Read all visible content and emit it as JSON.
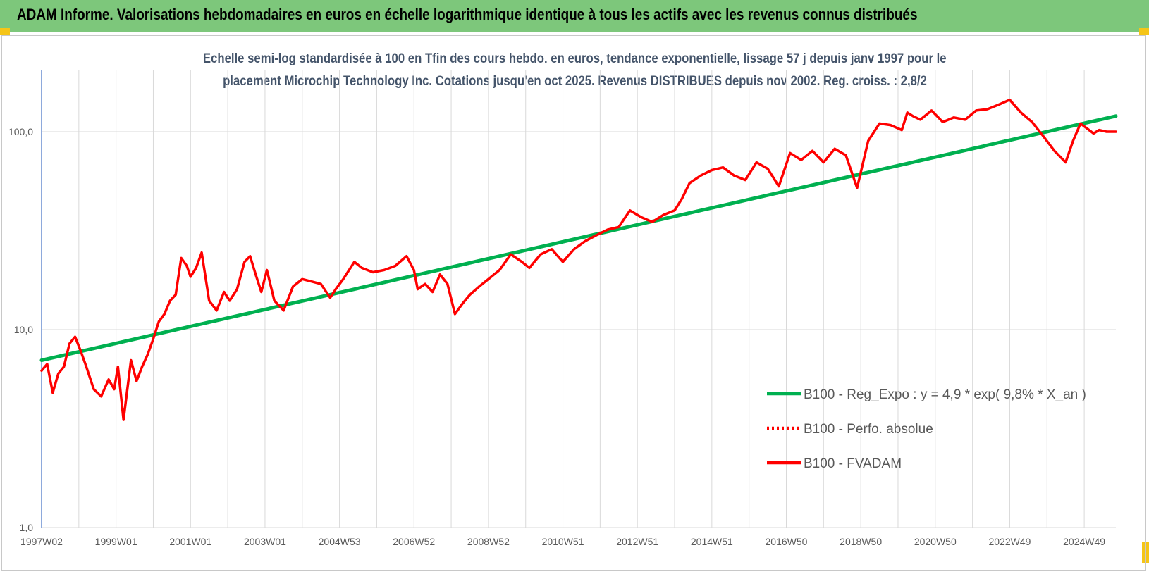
{
  "header": {
    "title": "ADAM Informe. Valorisations hebdomadaires en euros en échelle logarithmique identique à tous les actifs avec les revenus connus distribués"
  },
  "colors": {
    "banner": "#7dc77b",
    "corner_accent": "#f5c518",
    "trend": "#00b050",
    "perfo": "#ff0000",
    "fvadam": "#ff0000",
    "axis_line": "#4472c4",
    "grid": "#d9d9d9"
  },
  "chart_data": {
    "type": "line",
    "title_line1": "Echelle semi-log standardisée à 100 en Tfin des cours hebdo. en euros, tendance exponentielle, lissage 57 j depuis janv 1997 pour le",
    "title_line2": "placement Microchip Technology Inc. Cotations jusqu'en oct 2025. Revenus DISTRIBUES depuis nov 2002. Reg. croiss. : 2,8/2",
    "xlabel": "",
    "ylabel": "",
    "y_scale": "log",
    "ylim": [
      1,
      200
    ],
    "y_ticks": [
      1,
      10,
      100
    ],
    "y_tick_labels": [
      "1,0",
      "10,0",
      "100,0"
    ],
    "x_range": [
      1997.0,
      2025.85
    ],
    "x_ticks": [
      1997.0,
      1999.0,
      2001.0,
      2003.0,
      2005.0,
      2007.0,
      2009.0,
      2011.0,
      2013.0,
      2015.0,
      2017.0,
      2019.0,
      2021.0,
      2023.0,
      2025.0
    ],
    "x_tick_labels": [
      "1997W02",
      "1999W01",
      "2001W01",
      "2003W01",
      "2004W53",
      "2006W52",
      "2008W52",
      "2010W51",
      "2012W51",
      "2014W51",
      "2016W50",
      "2018W50",
      "2020W50",
      "2022W49",
      "2024W49"
    ],
    "grid": true,
    "legend_position": "bottom-right",
    "series": [
      {
        "name": "B100 - Reg_Expo : y = 4,9 * exp( 9,8% *  X_an )",
        "style": "solid",
        "color": "#00b050",
        "x": [
          1997.0,
          2025.85
        ],
        "y": [
          7.0,
          120.0
        ]
      },
      {
        "name": "B100 - Perfo. absolue",
        "style": "dotted",
        "color": "#ff0000",
        "x": [],
        "y": []
      },
      {
        "name": "B100 - FVADAM",
        "style": "solid",
        "color": "#ff0000",
        "x": [
          1997.0,
          1997.15,
          1997.3,
          1997.45,
          1997.6,
          1997.75,
          1997.9,
          1998.05,
          1998.2,
          1998.4,
          1998.6,
          1998.8,
          1998.95,
          1999.05,
          1999.2,
          1999.4,
          1999.55,
          1999.7,
          1999.85,
          2000.0,
          2000.15,
          2000.3,
          2000.45,
          2000.6,
          2000.75,
          2000.9,
          2001.0,
          2001.15,
          2001.3,
          2001.5,
          2001.7,
          2001.9,
          2002.05,
          2002.25,
          2002.45,
          2002.6,
          2002.75,
          2002.9,
          2003.05,
          2003.25,
          2003.5,
          2003.75,
          2004.0,
          2004.25,
          2004.5,
          2004.75,
          2004.9,
          2005.1,
          2005.4,
          2005.6,
          2005.9,
          2006.2,
          2006.5,
          2006.8,
          2007.0,
          2007.1,
          2007.3,
          2007.5,
          2007.7,
          2007.9,
          2008.1,
          2008.3,
          2008.5,
          2008.75,
          2009.0,
          2009.3,
          2009.6,
          2009.9,
          2010.1,
          2010.4,
          2010.7,
          2011.0,
          2011.3,
          2011.6,
          2011.9,
          2012.2,
          2012.5,
          2012.8,
          2013.1,
          2013.4,
          2013.7,
          2014.0,
          2014.2,
          2014.4,
          2014.7,
          2015.0,
          2015.3,
          2015.6,
          2015.9,
          2016.2,
          2016.5,
          2016.8,
          2017.1,
          2017.4,
          2017.7,
          2018.0,
          2018.3,
          2018.6,
          2018.9,
          2019.2,
          2019.5,
          2019.8,
          2020.1,
          2020.25,
          2020.4,
          2020.6,
          2020.9,
          2021.2,
          2021.5,
          2021.8,
          2022.1,
          2022.4,
          2022.7,
          2023.0,
          2023.3,
          2023.6,
          2023.9,
          2024.2,
          2024.5,
          2024.7,
          2024.9,
          2025.1,
          2025.25,
          2025.4,
          2025.6,
          2025.85
        ],
        "y": [
          6.2,
          6.7,
          4.8,
          6.0,
          6.5,
          8.5,
          9.2,
          7.8,
          6.5,
          5.0,
          4.6,
          5.6,
          5.0,
          6.5,
          3.5,
          7.0,
          5.5,
          6.5,
          7.5,
          9.0,
          11.0,
          12.0,
          14.0,
          15.0,
          23.0,
          21.0,
          18.5,
          20.5,
          24.5,
          14.0,
          12.5,
          15.5,
          14.0,
          16.0,
          22.0,
          23.5,
          19.0,
          15.5,
          20.0,
          14.0,
          12.5,
          16.5,
          18.0,
          17.5,
          17.0,
          14.5,
          16.0,
          18.0,
          22.0,
          20.5,
          19.5,
          20.0,
          21.0,
          23.5,
          20.0,
          16.0,
          17.0,
          15.5,
          19.0,
          17.0,
          12.0,
          13.5,
          15.0,
          16.5,
          18.0,
          20.0,
          24.0,
          22.0,
          20.5,
          24.0,
          25.5,
          22.0,
          25.5,
          28.0,
          30.0,
          32.0,
          33.0,
          40.0,
          37.0,
          35.0,
          38.0,
          40.0,
          46.0,
          55.0,
          60.0,
          64.0,
          66.0,
          60.0,
          57.0,
          70.0,
          65.0,
          53.0,
          78.0,
          72.0,
          80.0,
          70.0,
          82.0,
          76.0,
          52.0,
          90.0,
          110.0,
          108.0,
          102.0,
          125.0,
          120.0,
          115.0,
          128.0,
          112.0,
          118.0,
          115.0,
          128.0,
          130.0,
          137.0,
          145.0,
          125.0,
          112.0,
          95.0,
          80.0,
          70.0,
          90.0,
          110.0,
          103.0,
          98.0,
          102.0,
          100.0,
          100.0
        ]
      }
    ]
  }
}
